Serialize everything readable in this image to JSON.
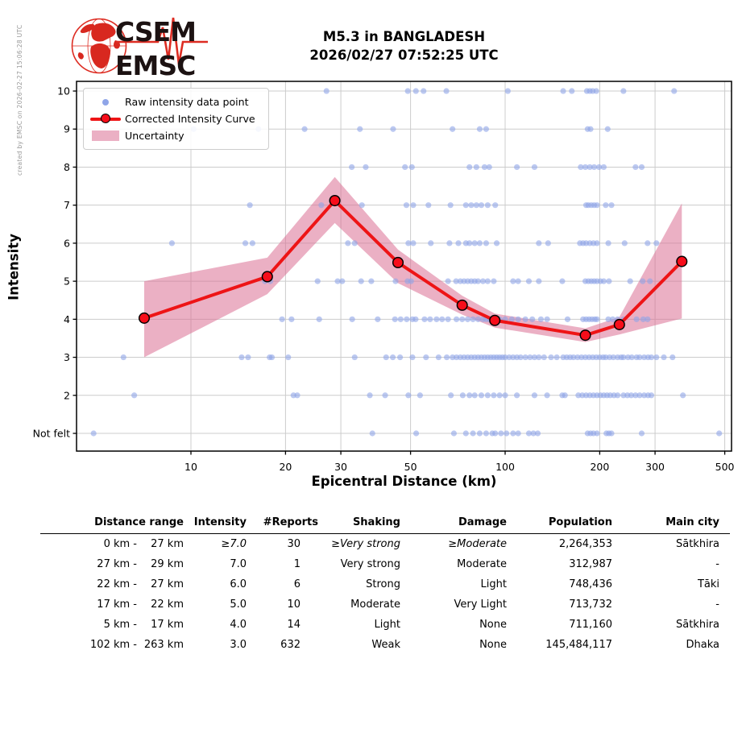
{
  "credit": "created by EMSC on 2026-02-27 15:06:28 UTC",
  "logo": {
    "line1": "CSEM",
    "line2": "EMSC"
  },
  "title": {
    "line1": "M5.3 in BANGLADESH",
    "line2": "2026/02/27 07:52:25 UTC"
  },
  "legend": {
    "raw": "Raw intensity data point",
    "curve": "Corrected Intensity Curve",
    "uncertainty": "Uncertainty"
  },
  "chart_data": {
    "type": "scatter",
    "title": "M5.3 in BANGLADESH 2026/02/27 07:52:25 UTC",
    "xlabel": "Epicentral Distance (km)",
    "ylabel": "Intensity",
    "x_scale": "log",
    "xlim": [
      4.3,
      525
    ],
    "ylim": [
      0.53,
      10.25
    ],
    "grid": true,
    "legend_position": "upper left",
    "x_ticks": [
      10,
      20,
      30,
      50,
      100,
      200,
      300,
      500
    ],
    "y_ticks": [
      {
        "value": 1,
        "label": "Not felt"
      },
      {
        "value": 2,
        "label": "2"
      },
      {
        "value": 3,
        "label": "3"
      },
      {
        "value": 4,
        "label": "4"
      },
      {
        "value": 5,
        "label": "5"
      },
      {
        "value": 6,
        "label": "6"
      },
      {
        "value": 7,
        "label": "7"
      },
      {
        "value": 8,
        "label": "8"
      },
      {
        "value": 9,
        "label": "9"
      },
      {
        "value": 10,
        "label": "10"
      }
    ],
    "raw_points_by_intensity": {
      "1": [
        4.9,
        37.8,
        52.1,
        68.7,
        75,
        79,
        83,
        87,
        91,
        93,
        97,
        101,
        106,
        110,
        119,
        123,
        127,
        183,
        187,
        191,
        196,
        210,
        214,
        218,
        272,
        480
      ],
      "2": [
        6.6,
        21.2,
        21.8,
        37.1,
        41.5,
        49.2,
        53.6,
        67.2,
        73.3,
        77,
        80,
        84,
        88,
        92,
        96,
        100,
        109,
        124,
        136,
        152,
        155,
        171,
        176,
        181,
        186,
        191,
        196,
        201,
        206,
        211,
        216,
        222,
        228,
        238,
        245,
        252,
        260,
        268,
        277,
        285,
        292,
        368
      ],
      "3": [
        6.1,
        14.5,
        15.2,
        17.8,
        18.1,
        20.4,
        33.2,
        41.8,
        43.9,
        46.3,
        50.7,
        56,
        61.4,
        65.2,
        68,
        70,
        72,
        74,
        76,
        78,
        80,
        82,
        84,
        86,
        88,
        90,
        92,
        94,
        96,
        98,
        100,
        103,
        106,
        109,
        112,
        116,
        120,
        124,
        128,
        133,
        140,
        146,
        153,
        157,
        161,
        165,
        170,
        175,
        180,
        185,
        190,
        195,
        200,
        205,
        209,
        215,
        221,
        228,
        234,
        238,
        246,
        253,
        262,
        268,
        277,
        285,
        292,
        303,
        320,
        341
      ],
      "4": [
        19.5,
        20.9,
        25.6,
        32.6,
        39.3,
        44.6,
        46.5,
        48.6,
        50.7,
        51.9,
        55.4,
        57.7,
        60.5,
        63,
        65.8,
        70,
        73,
        76,
        79,
        82,
        85,
        87,
        89,
        93,
        96,
        100,
        105,
        110,
        116,
        122,
        130,
        136,
        158,
        177,
        181,
        185,
        189,
        193,
        196,
        213,
        220,
        228,
        238,
        262,
        275,
        284
      ],
      "5": [
        17.2,
        17.9,
        25.3,
        29.3,
        30.3,
        34.8,
        37.5,
        44.8,
        48.9,
        50.2,
        65.8,
        69.8,
        72,
        74,
        76,
        78,
        80,
        82,
        85,
        88,
        92,
        106,
        110,
        119,
        128,
        152,
        180,
        184,
        188,
        192,
        196,
        201,
        206,
        214,
        250,
        274,
        289
      ],
      "6": [
        8.7,
        14.9,
        15.7,
        31.6,
        33.2,
        49.2,
        51,
        58,
        66.5,
        71,
        75,
        77,
        80,
        83,
        87,
        94,
        128,
        137,
        173,
        177,
        181,
        186,
        191,
        196,
        213,
        240,
        284,
        303
      ],
      "7": [
        15.4,
        26,
        35,
        48.5,
        51,
        57,
        67,
        75,
        78,
        81,
        84,
        88,
        93,
        181,
        184,
        188,
        192,
        196,
        209,
        218
      ],
      "8": [
        32.5,
        36,
        48,
        50.5,
        77,
        81,
        86,
        89,
        109,
        124,
        174,
        180,
        186,
        192,
        199,
        206,
        260,
        272
      ],
      "9": [
        10.2,
        16.4,
        23,
        34.5,
        44,
        68,
        83,
        87,
        183,
        187,
        212
      ],
      "10": [
        27,
        49,
        52,
        55,
        65,
        102,
        153,
        163,
        182,
        186,
        190,
        195,
        238,
        345
      ]
    },
    "corrected_curve": {
      "distance_km": [
        7.1,
        17.5,
        28.7,
        45.6,
        73,
        92.7,
        180,
        231,
        365
      ],
      "intensity": [
        4.03,
        5.12,
        7.12,
        5.49,
        4.37,
        3.97,
        3.58,
        3.86,
        5.52
      ]
    },
    "uncertainty_band": {
      "distance_km": [
        7.1,
        17.5,
        28.7,
        45.6,
        73,
        92.7,
        180,
        231,
        365
      ],
      "upper": [
        5.0,
        5.62,
        7.74,
        5.83,
        4.62,
        4.15,
        3.76,
        4.06,
        7.05
      ],
      "lower": [
        3.0,
        4.66,
        6.53,
        4.95,
        4.12,
        3.78,
        3.4,
        3.6,
        4.02
      ]
    },
    "colors": {
      "raw_point": "#8fa5e8",
      "curve": "#ee1416",
      "marker_fill": "#f70d1a",
      "marker_edge": "#000000",
      "band": "#db7093",
      "band_opacity": 0.55,
      "grid": "#cccccc",
      "spine": "#000000"
    }
  },
  "table": {
    "headers": {
      "distance_range": "Distance range",
      "intensity": "Intensity",
      "reports": "#Reports",
      "shaking": "Shaking",
      "damage": "Damage",
      "population": "Population",
      "main_city": "Main city"
    },
    "rows": [
      {
        "from": "0 km",
        "to": "27 km",
        "intensity": "≥7.0",
        "reports": "30",
        "shaking": "≥Very strong",
        "damage": "≥Moderate",
        "population": "2,264,353",
        "city": "Sātkhira",
        "italic": true
      },
      {
        "from": "27 km",
        "to": "29 km",
        "intensity": "7.0",
        "reports": "1",
        "shaking": "Very strong",
        "damage": "Moderate",
        "population": "312,987",
        "city": "-",
        "italic": false
      },
      {
        "from": "22 km",
        "to": "27 km",
        "intensity": "6.0",
        "reports": "6",
        "shaking": "Strong",
        "damage": "Light",
        "population": "748,436",
        "city": "Tāki",
        "italic": false
      },
      {
        "from": "17 km",
        "to": "22 km",
        "intensity": "5.0",
        "reports": "10",
        "shaking": "Moderate",
        "damage": "Very Light",
        "population": "713,732",
        "city": "-",
        "italic": false
      },
      {
        "from": "5 km",
        "to": "17 km",
        "intensity": "4.0",
        "reports": "14",
        "shaking": "Light",
        "damage": "None",
        "population": "711,160",
        "city": "Sātkhira",
        "italic": false
      },
      {
        "from": "102 km",
        "to": "263 km",
        "intensity": "3.0",
        "reports": "632",
        "shaking": "Weak",
        "damage": "None",
        "population": "145,484,117",
        "city": "Dhaka",
        "italic": false
      }
    ]
  }
}
